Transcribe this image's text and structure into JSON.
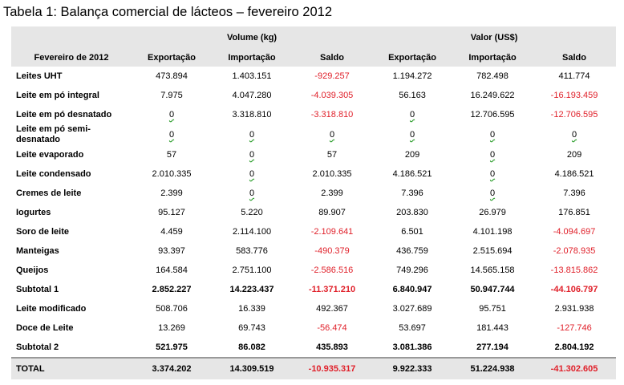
{
  "title": "Tabela 1: Balança comercial de lácteos – fevereiro 2012",
  "header": {
    "group_volume": "Volume (kg)",
    "group_valor": "Valor (US$)",
    "row_label": "Fevereiro de 2012",
    "columns": [
      "Exportação",
      "Importação",
      "Saldo",
      "Exportação",
      "Importação",
      "Saldo"
    ]
  },
  "rows": [
    {
      "label": "Leites UHT",
      "cells": [
        "473.894",
        "1.403.151",
        "-929.257",
        "1.194.272",
        "782.498",
        "411.774"
      ]
    },
    {
      "label": "Leite em pó integral",
      "cells": [
        "7.975",
        "4.047.280",
        "-4.039.305",
        "56.163",
        "16.249.622",
        "-16.193.459"
      ]
    },
    {
      "label": "Leite em pó desnatado",
      "cells": [
        "0",
        "3.318.810",
        "-3.318.810",
        "0",
        "12.706.595",
        "-12.706.595"
      ]
    },
    {
      "label": "Leite em pó semi-desnatado",
      "cells": [
        "0",
        "0",
        "0",
        "0",
        "0",
        "0"
      ]
    },
    {
      "label": "Leite evaporado",
      "cells": [
        "57",
        "0",
        "57",
        "209",
        "0",
        "209"
      ]
    },
    {
      "label": "Leite condensado",
      "cells": [
        "2.010.335",
        "0",
        "2.010.335",
        "4.186.521",
        "0",
        "4.186.521"
      ]
    },
    {
      "label": "Cremes de leite",
      "cells": [
        "2.399",
        "0",
        "2.399",
        "7.396",
        "0",
        "7.396"
      ]
    },
    {
      "label": "Iogurtes",
      "cells": [
        "95.127",
        "5.220",
        "89.907",
        "203.830",
        "26.979",
        "176.851"
      ]
    },
    {
      "label": "Soro de leite",
      "cells": [
        "4.459",
        "2.114.100",
        "-2.109.641",
        "6.501",
        "4.101.198",
        "-4.094.697"
      ]
    },
    {
      "label": "Manteigas",
      "cells": [
        "93.397",
        "583.776",
        "-490.379",
        "436.759",
        "2.515.694",
        "-2.078.935"
      ]
    },
    {
      "label": "Queijos",
      "cells": [
        "164.584",
        "2.751.100",
        "-2.586.516",
        "749.296",
        "14.565.158",
        "-13.815.862"
      ]
    },
    {
      "label": "Subtotal 1",
      "cells": [
        "2.852.227",
        "14.223.437",
        "-11.371.210",
        "6.840.947",
        "50.947.744",
        "-44.106.797"
      ]
    },
    {
      "label": "Leite modificado",
      "cells": [
        "508.706",
        "16.339",
        "492.367",
        "3.027.689",
        "95.751",
        "2.931.938"
      ]
    },
    {
      "label": "Doce de Leite",
      "cells": [
        "13.269",
        "69.743",
        "-56.474",
        "53.697",
        "181.443",
        "-127.746"
      ]
    },
    {
      "label": "Subtotal 2",
      "cells": [
        "521.975",
        "86.082",
        "435.893",
        "3.081.386",
        "277.194",
        "2.804.192"
      ]
    }
  ],
  "total": {
    "label": "TOTAL",
    "cells": [
      "3.374.202",
      "14.309.519",
      "-10.935.317",
      "9.922.333",
      "51.224.938",
      "-41.302.605"
    ]
  },
  "colors": {
    "negative": "#e0202a",
    "header_bg": "#e6e6e6"
  }
}
